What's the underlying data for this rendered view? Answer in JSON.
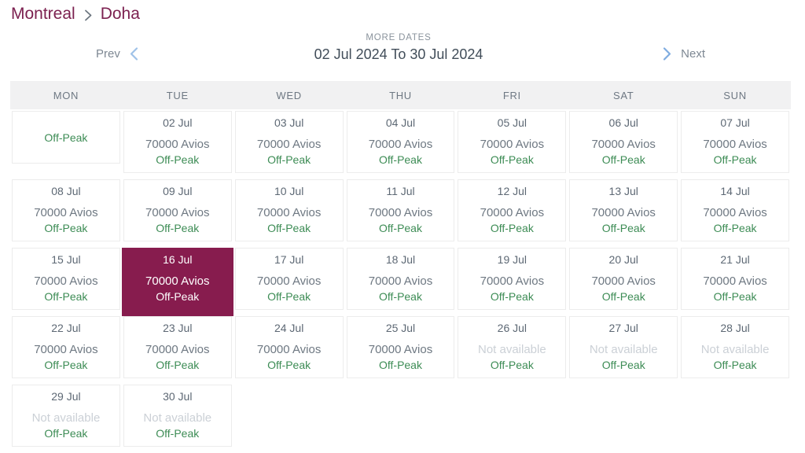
{
  "route": {
    "origin": "Montreal",
    "destination": "Doha"
  },
  "nav": {
    "more_dates_label": "MORE DATES",
    "date_range": "02 Jul 2024 To 30 Jul 2024",
    "prev_label": "Prev",
    "next_label": "Next"
  },
  "calendar": {
    "day_headers": [
      "MON",
      "TUE",
      "WED",
      "THU",
      "FRI",
      "SAT",
      "SUN"
    ],
    "rows": [
      [
        {
          "peak": "Off-Peak",
          "no_date": true
        },
        {
          "date": "02 Jul",
          "price": "70000 Avios",
          "peak": "Off-Peak"
        },
        {
          "date": "03 Jul",
          "price": "70000 Avios",
          "peak": "Off-Peak"
        },
        {
          "date": "04 Jul",
          "price": "70000 Avios",
          "peak": "Off-Peak"
        },
        {
          "date": "05 Jul",
          "price": "70000 Avios",
          "peak": "Off-Peak"
        },
        {
          "date": "06 Jul",
          "price": "70000 Avios",
          "peak": "Off-Peak"
        },
        {
          "date": "07 Jul",
          "price": "70000 Avios",
          "peak": "Off-Peak"
        }
      ],
      [
        {
          "date": "08 Jul",
          "price": "70000 Avios",
          "peak": "Off-Peak"
        },
        {
          "date": "09 Jul",
          "price": "70000 Avios",
          "peak": "Off-Peak"
        },
        {
          "date": "10 Jul",
          "price": "70000 Avios",
          "peak": "Off-Peak"
        },
        {
          "date": "11 Jul",
          "price": "70000 Avios",
          "peak": "Off-Peak"
        },
        {
          "date": "12 Jul",
          "price": "70000 Avios",
          "peak": "Off-Peak"
        },
        {
          "date": "13 Jul",
          "price": "70000 Avios",
          "peak": "Off-Peak"
        },
        {
          "date": "14 Jul",
          "price": "70000 Avios",
          "peak": "Off-Peak"
        }
      ],
      [
        {
          "date": "15 Jul",
          "price": "70000 Avios",
          "peak": "Off-Peak"
        },
        {
          "date": "16 Jul",
          "price": "70000 Avios",
          "peak": "Off-Peak",
          "selected": true
        },
        {
          "date": "17 Jul",
          "price": "70000 Avios",
          "peak": "Off-Peak"
        },
        {
          "date": "18 Jul",
          "price": "70000 Avios",
          "peak": "Off-Peak"
        },
        {
          "date": "19 Jul",
          "price": "70000 Avios",
          "peak": "Off-Peak"
        },
        {
          "date": "20 Jul",
          "price": "70000 Avios",
          "peak": "Off-Peak"
        },
        {
          "date": "21 Jul",
          "price": "70000 Avios",
          "peak": "Off-Peak"
        }
      ],
      [
        {
          "date": "22 Jul",
          "price": "70000 Avios",
          "peak": "Off-Peak"
        },
        {
          "date": "23 Jul",
          "price": "70000 Avios",
          "peak": "Off-Peak"
        },
        {
          "date": "24 Jul",
          "price": "70000 Avios",
          "peak": "Off-Peak"
        },
        {
          "date": "25 Jul",
          "price": "70000 Avios",
          "peak": "Off-Peak"
        },
        {
          "date": "26 Jul",
          "price": "Not available",
          "peak": "Off-Peak",
          "unavailable": true
        },
        {
          "date": "27 Jul",
          "price": "Not available",
          "peak": "Off-Peak",
          "unavailable": true
        },
        {
          "date": "28 Jul",
          "price": "Not available",
          "peak": "Off-Peak",
          "unavailable": true
        }
      ],
      [
        {
          "date": "29 Jul",
          "price": "Not available",
          "peak": "Off-Peak",
          "unavailable": true
        },
        {
          "date": "30 Jul",
          "price": "Not available",
          "peak": "Off-Peak",
          "unavailable": true
        }
      ]
    ]
  },
  "colors": {
    "brand_maroon": "#7C2150",
    "selected_cell_bg": "#871C4E",
    "offpeak_green": "#3D8C55",
    "unavailable_gray": "#CBD0D6",
    "chevron_blue": "#8AB4E2",
    "header_bg": "#F1F1F2",
    "cell_border": "#ECECEC"
  }
}
